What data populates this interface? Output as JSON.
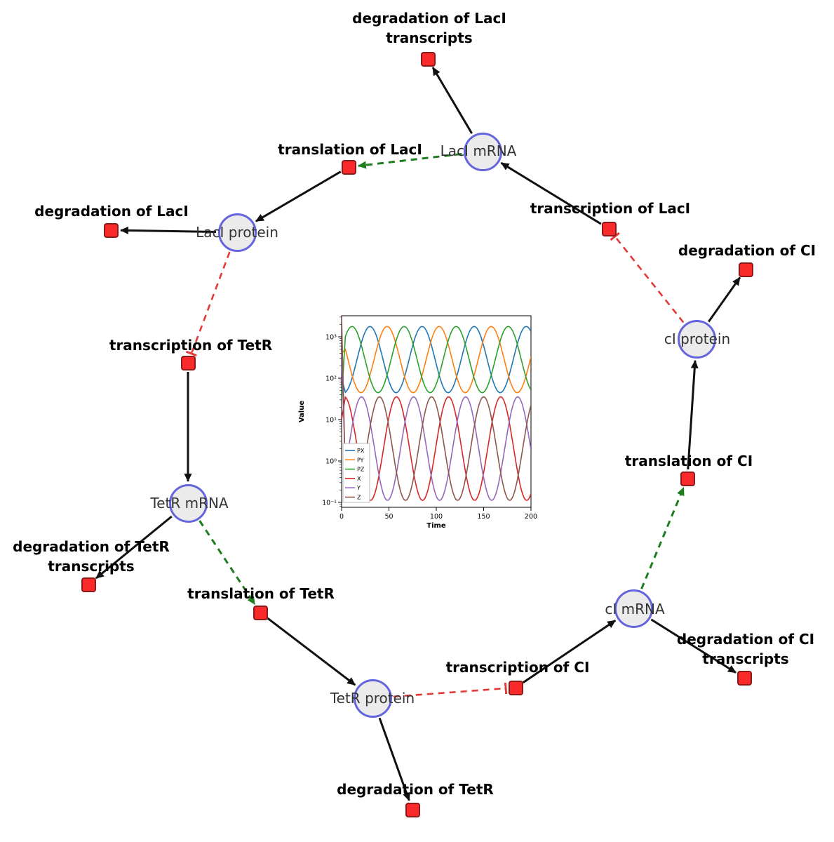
{
  "diagram": {
    "species": [
      {
        "id": "laci_mrna",
        "label": "LacI mRNA"
      },
      {
        "id": "laci_protein",
        "label": "LacI protein"
      },
      {
        "id": "tetr_mrna",
        "label": "TetR mRNA"
      },
      {
        "id": "tetr_protein",
        "label": "TetR protein"
      },
      {
        "id": "ci_mrna",
        "label": "cI mRNA"
      },
      {
        "id": "ci_protein",
        "label": "cI protein"
      }
    ],
    "reactions": [
      {
        "id": "deg_laci_tx",
        "label": "degradation of LacI transcripts",
        "lines": [
          "degradation of LacI",
          "transcripts"
        ]
      },
      {
        "id": "transl_laci",
        "label": "translation of LacI",
        "lines": [
          "translation of LacI"
        ]
      },
      {
        "id": "deg_laci",
        "label": "degradation of LacI",
        "lines": [
          "degradation of LacI"
        ]
      },
      {
        "id": "txn_laci",
        "label": "transcription of LacI",
        "lines": [
          "transcription of LacI"
        ]
      },
      {
        "id": "deg_ci",
        "label": "degradation of CI",
        "lines": [
          "degradation of CI"
        ]
      },
      {
        "id": "txn_tetr",
        "label": "transcription of TetR",
        "lines": [
          "transcription of TetR"
        ]
      },
      {
        "id": "transl_ci",
        "label": "translation of CI",
        "lines": [
          "translation of CI"
        ]
      },
      {
        "id": "deg_tetr_tx",
        "label": "degradation of TetR transcripts",
        "lines": [
          "degradation of TetR",
          "transcripts"
        ]
      },
      {
        "id": "transl_tetr",
        "label": "translation of TetR",
        "lines": [
          "translation of TetR"
        ]
      },
      {
        "id": "deg_ci_tx",
        "label": "degradation of CI transcripts",
        "lines": [
          "degradation of CI",
          "transcripts"
        ]
      },
      {
        "id": "txn_ci",
        "label": "transcription of CI",
        "lines": [
          "transcription of CI"
        ]
      },
      {
        "id": "deg_tetr",
        "label": "degradation of TetR",
        "lines": [
          "degradation of TetR"
        ]
      }
    ],
    "edges": [
      {
        "from": "laci_mrna",
        "to": "deg_laci_tx",
        "type": "consumption"
      },
      {
        "from": "laci_protein",
        "to": "deg_laci",
        "type": "consumption"
      },
      {
        "from": "tetr_mrna",
        "to": "deg_tetr_tx",
        "type": "consumption"
      },
      {
        "from": "tetr_protein",
        "to": "deg_tetr",
        "type": "consumption"
      },
      {
        "from": "ci_mrna",
        "to": "deg_ci_tx",
        "type": "consumption"
      },
      {
        "from": "ci_protein",
        "to": "deg_ci",
        "type": "consumption"
      },
      {
        "from": "transl_laci",
        "to": "laci_protein",
        "type": "production"
      },
      {
        "from": "txn_laci",
        "to": "laci_mrna",
        "type": "production"
      },
      {
        "from": "txn_tetr",
        "to": "tetr_mrna",
        "type": "production"
      },
      {
        "from": "transl_tetr",
        "to": "tetr_protein",
        "type": "production"
      },
      {
        "from": "txn_ci",
        "to": "ci_mrna",
        "type": "production"
      },
      {
        "from": "transl_ci",
        "to": "ci_protein",
        "type": "production"
      },
      {
        "from": "laci_mrna",
        "to": "transl_laci",
        "type": "modifier"
      },
      {
        "from": "tetr_mrna",
        "to": "transl_tetr",
        "type": "modifier"
      },
      {
        "from": "ci_mrna",
        "to": "transl_ci",
        "type": "modifier"
      },
      {
        "from": "laci_protein",
        "to": "txn_tetr",
        "type": "inhibition"
      },
      {
        "from": "tetr_protein",
        "to": "txn_ci",
        "type": "inhibition"
      },
      {
        "from": "ci_protein",
        "to": "txn_laci",
        "type": "inhibition"
      }
    ],
    "colors": {
      "species_fill": "#ebebeb",
      "species_stroke": "#6464dd",
      "reaction_fill": "#fa2a2a",
      "reaction_stroke": "#8b1a1a",
      "edge": "#111111",
      "modifier": "#1e7d1e",
      "inhibition": "#e53935"
    }
  },
  "chart_data": {
    "type": "line",
    "title": "",
    "xlabel": "Time",
    "ylabel": "Value",
    "x_range": [
      0,
      200
    ],
    "x_ticks": [
      0,
      50,
      100,
      150,
      200
    ],
    "y_scale": "log",
    "y_ticks_log10": [
      -1,
      0,
      1,
      2,
      3
    ],
    "ylim_log10": [
      -1.12,
      3.51
    ],
    "grid": false,
    "legend_position": "lower left",
    "series": [
      {
        "name": "PX",
        "color": "#1f77b4",
        "log10_mean": 2.45,
        "log10_amplitude": 0.8,
        "period": 55,
        "peak_time": 30,
        "start_log10": 2.0
      },
      {
        "name": "PY",
        "color": "#ff7f0e",
        "log10_mean": 2.45,
        "log10_amplitude": 0.8,
        "period": 55,
        "peak_time": 48,
        "start_log10": 2.6
      },
      {
        "name": "PZ",
        "color": "#2ca02c",
        "log10_mean": 2.45,
        "log10_amplitude": 0.8,
        "period": 55,
        "peak_time": 66,
        "start_log10": 1.5
      },
      {
        "name": "X",
        "color": "#d62728",
        "log10_mean": 0.3,
        "log10_amplitude": 1.25,
        "period": 55,
        "peak_time": 58,
        "start_log10": 1.0
      },
      {
        "name": "Y",
        "color": "#9467bd",
        "log10_mean": 0.3,
        "log10_amplitude": 1.25,
        "period": 55,
        "peak_time": 76,
        "start_log10": 2.6
      },
      {
        "name": "Z",
        "color": "#8c564b",
        "log10_mean": 0.3,
        "log10_amplitude": 1.25,
        "period": 55,
        "peak_time": 40,
        "start_log10": 3.5
      }
    ]
  }
}
